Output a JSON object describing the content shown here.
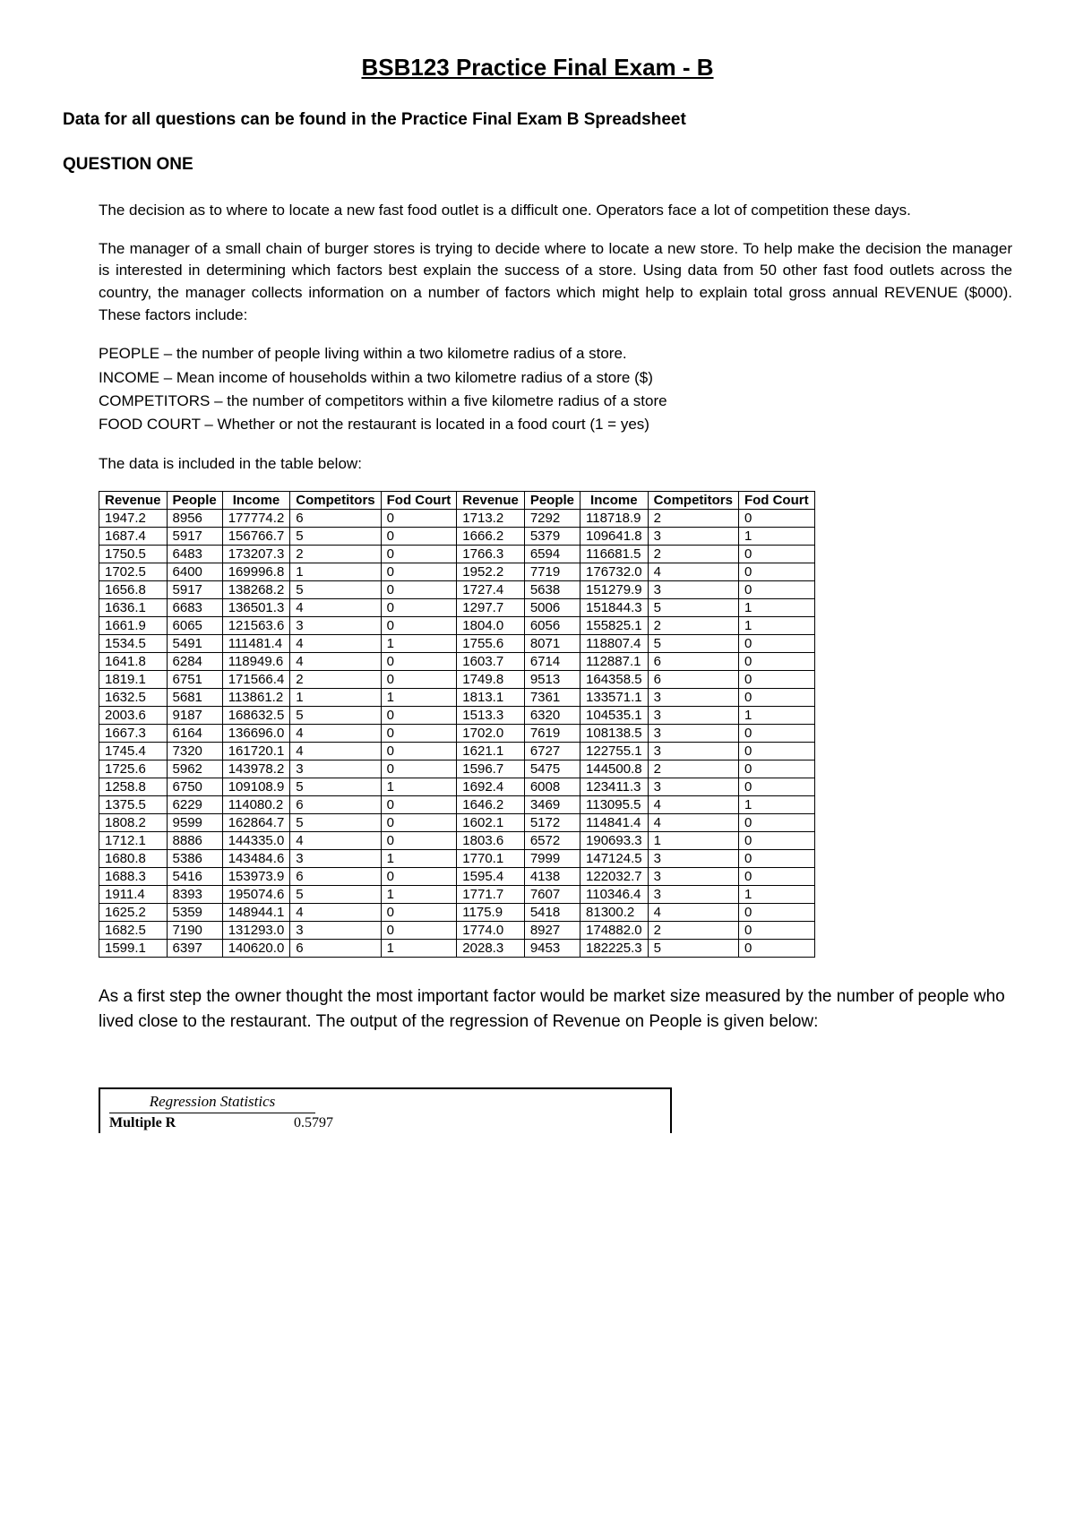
{
  "title": "BSB123 Practice Final Exam - B",
  "subtitle": "Data for all questions can be found in the Practice Final Exam B Spreadsheet",
  "question_heading": "QUESTION ONE",
  "para1": "The decision as to where to locate a new fast food outlet is a difficult one. Operators face a lot of competition these days.",
  "para2": "The manager of a small chain of burger stores is trying to decide where to locate a new store. To help make the decision the manager is interested in determining which factors best explain the success of a store. Using data from 50 other fast food outlets across the country, the manager collects information on a number of factors which might help to explain total gross annual REVENUE ($000). These factors include:",
  "factors": {
    "people": "PEOPLE – the number of people living within a two kilometre radius of a store.",
    "income": "INCOME – Mean income of households within a two kilometre radius of a store ($)",
    "competitors": "COMPETITORS – the number of competitors within a five kilometre radius of a store",
    "foodcourt": "FOOD COURT – Whether or not the restaurant is located in a food court (1 = yes)"
  },
  "table_intro": "The data is included in the table below:",
  "data_table": {
    "columns": [
      "Revenue",
      "People",
      "Income",
      "Competitors",
      "Fod Court",
      "Revenue",
      "People",
      "Income",
      "Competitors",
      "Fod Court"
    ],
    "rows": [
      [
        "1947.2",
        "8956",
        "177774.2",
        "6",
        "0",
        "1713.2",
        "7292",
        "118718.9",
        "2",
        "0"
      ],
      [
        "1687.4",
        "5917",
        "156766.7",
        "5",
        "0",
        "1666.2",
        "5379",
        "109641.8",
        "3",
        "1"
      ],
      [
        "1750.5",
        "6483",
        "173207.3",
        "2",
        "0",
        "1766.3",
        "6594",
        "116681.5",
        "2",
        "0"
      ],
      [
        "1702.5",
        "6400",
        "169996.8",
        "1",
        "0",
        "1952.2",
        "7719",
        "176732.0",
        "4",
        "0"
      ],
      [
        "1656.8",
        "5917",
        "138268.2",
        "5",
        "0",
        "1727.4",
        "5638",
        "151279.9",
        "3",
        "0"
      ],
      [
        "1636.1",
        "6683",
        "136501.3",
        "4",
        "0",
        "1297.7",
        "5006",
        "151844.3",
        "5",
        "1"
      ],
      [
        "1661.9",
        "6065",
        "121563.6",
        "3",
        "0",
        "1804.0",
        "6056",
        "155825.1",
        "2",
        "1"
      ],
      [
        "1534.5",
        "5491",
        "111481.4",
        "4",
        "1",
        "1755.6",
        "8071",
        "118807.4",
        "5",
        "0"
      ],
      [
        "1641.8",
        "6284",
        "118949.6",
        "4",
        "0",
        "1603.7",
        "6714",
        "112887.1",
        "6",
        "0"
      ],
      [
        "1819.1",
        "6751",
        "171566.4",
        "2",
        "0",
        "1749.8",
        "9513",
        "164358.5",
        "6",
        "0"
      ],
      [
        "1632.5",
        "5681",
        "113861.2",
        "1",
        "1",
        "1813.1",
        "7361",
        "133571.1",
        "3",
        "0"
      ],
      [
        "2003.6",
        "9187",
        "168632.5",
        "5",
        "0",
        "1513.3",
        "6320",
        "104535.1",
        "3",
        "1"
      ],
      [
        "1667.3",
        "6164",
        "136696.0",
        "4",
        "0",
        "1702.0",
        "7619",
        "108138.5",
        "3",
        "0"
      ],
      [
        "1745.4",
        "7320",
        "161720.1",
        "4",
        "0",
        "1621.1",
        "6727",
        "122755.1",
        "3",
        "0"
      ],
      [
        "1725.6",
        "5962",
        "143978.2",
        "3",
        "0",
        "1596.7",
        "5475",
        "144500.8",
        "2",
        "0"
      ],
      [
        "1258.8",
        "6750",
        "109108.9",
        "5",
        "1",
        "1692.4",
        "6008",
        "123411.3",
        "3",
        "0"
      ],
      [
        "1375.5",
        "6229",
        "114080.2",
        "6",
        "0",
        "1646.2",
        "3469",
        "113095.5",
        "4",
        "1"
      ],
      [
        "1808.2",
        "9599",
        "162864.7",
        "5",
        "0",
        "1602.1",
        "5172",
        "114841.4",
        "4",
        "0"
      ],
      [
        "1712.1",
        "8886",
        "144335.0",
        "4",
        "0",
        "1803.6",
        "6572",
        "190693.3",
        "1",
        "0"
      ],
      [
        "1680.8",
        "5386",
        "143484.6",
        "3",
        "1",
        "1770.1",
        "7999",
        "147124.5",
        "3",
        "0"
      ],
      [
        "1688.3",
        "5416",
        "153973.9",
        "6",
        "0",
        "1595.4",
        "4138",
        "122032.7",
        "3",
        "0"
      ],
      [
        "1911.4",
        "8393",
        "195074.6",
        "5",
        "1",
        "1771.7",
        "7607",
        "110346.4",
        "3",
        "1"
      ],
      [
        "1625.2",
        "5359",
        "148944.1",
        "4",
        "0",
        "1175.9",
        "5418",
        "81300.2",
        "4",
        "0"
      ],
      [
        "1682.5",
        "7190",
        "131293.0",
        "3",
        "0",
        "1774.0",
        "8927",
        "174882.0",
        "2",
        "0"
      ],
      [
        "1599.1",
        "6397",
        "140620.0",
        "6",
        "1",
        "2028.3",
        "9453",
        "182225.3",
        "5",
        "0"
      ]
    ]
  },
  "after_para": "As a first step the owner thought the most important factor would be market size measured by the number of people who lived close to the restaurant. The output of the regression of Revenue on People is given below:",
  "regression": {
    "title": "Regression Statistics",
    "rows": [
      {
        "label": "Multiple R",
        "value": "0.5797"
      }
    ]
  },
  "style": {
    "background_color": "#ffffff",
    "text_color": "#000000",
    "title_fontsize": 26,
    "body_fontsize": 17,
    "table_fontsize": 15,
    "border_color": "#000000"
  }
}
